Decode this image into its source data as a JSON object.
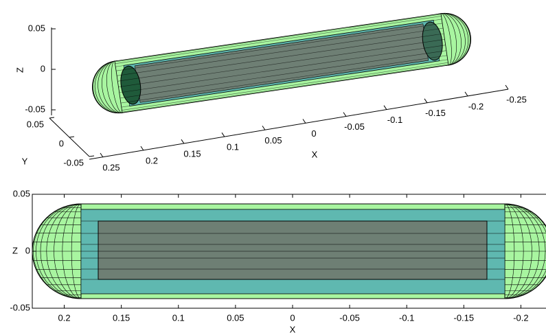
{
  "chart_data": [
    {
      "type": "surface3d",
      "xlabel": "X",
      "ylabel": "Y",
      "zlabel": "Z",
      "xlim": [
        0.25,
        -0.25
      ],
      "xticks": [
        0.25,
        0.2,
        0.15,
        0.1,
        0.05,
        0,
        -0.05,
        -0.1,
        -0.15,
        -0.2,
        -0.25
      ],
      "ylim": [
        0.05,
        -0.05
      ],
      "yticks": [
        0.05,
        0,
        -0.05
      ],
      "zlim": [
        -0.05,
        0.05
      ],
      "zticks": [
        -0.05,
        0,
        0.05
      ]
    },
    {
      "type": "surface2d",
      "xlabel": "X",
      "ylabel": "Z",
      "xlim": [
        0.228,
        -0.222
      ],
      "xticks": [
        0.2,
        0.15,
        0.1,
        0.05,
        0,
        -0.05,
        -0.1,
        -0.15,
        -0.2
      ],
      "ylim": [
        -0.05,
        0.05
      ],
      "yticks": [
        -0.05,
        0,
        0.05
      ]
    }
  ]
}
